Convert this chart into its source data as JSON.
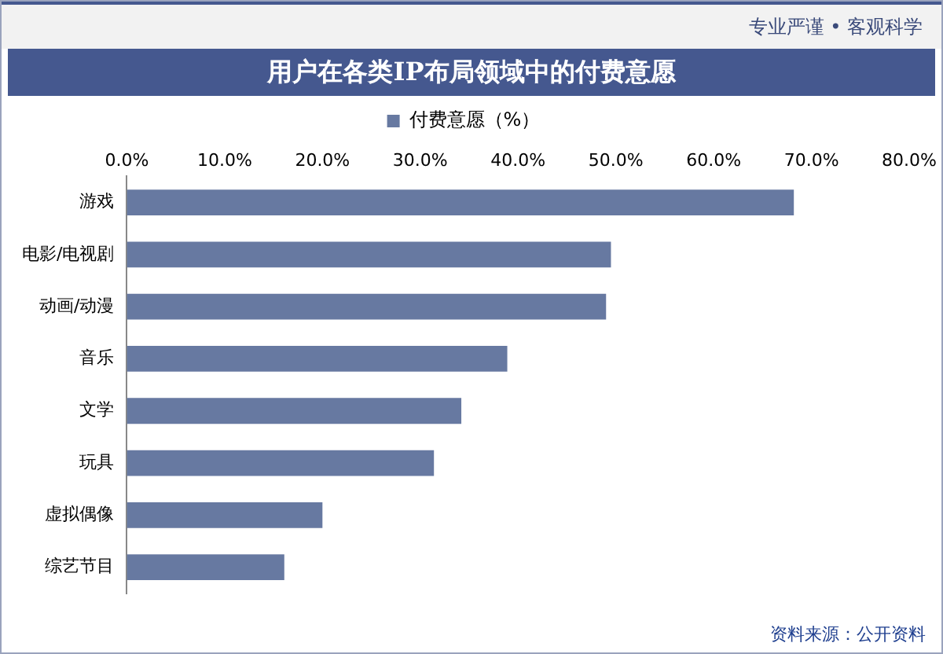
{
  "chart_data": {
    "type": "bar",
    "orientation": "horizontal",
    "title": "用户在各类IP布局领域中的付费意愿",
    "categories": [
      "游戏",
      "电影/电视剧",
      "动画/动漫",
      "音乐",
      "文学",
      "玩具",
      "虚拟偶像",
      "综艺节目"
    ],
    "series": [
      {
        "name": "付费意愿（%）",
        "color": "#6779a1",
        "values": [
          68.2,
          49.5,
          49.0,
          38.9,
          34.2,
          31.4,
          20.0,
          16.1
        ]
      }
    ],
    "xlim": [
      0,
      80
    ],
    "xticks": [
      {
        "value": 0,
        "label": "0.0%"
      },
      {
        "value": 10,
        "label": "10.0%"
      },
      {
        "value": 20,
        "label": "20.0%"
      },
      {
        "value": 30,
        "label": "30.0%"
      },
      {
        "value": 40,
        "label": "40.0%"
      },
      {
        "value": 50,
        "label": "50.0%"
      },
      {
        "value": 60,
        "label": "60.0%"
      },
      {
        "value": 70,
        "label": "70.0%"
      },
      {
        "value": 80,
        "label": "80.0%"
      }
    ],
    "grid": false,
    "legend": "top",
    "annotations": [
      "专业严谨 • 客观科学",
      "资料来源：公开资料"
    ]
  }
}
